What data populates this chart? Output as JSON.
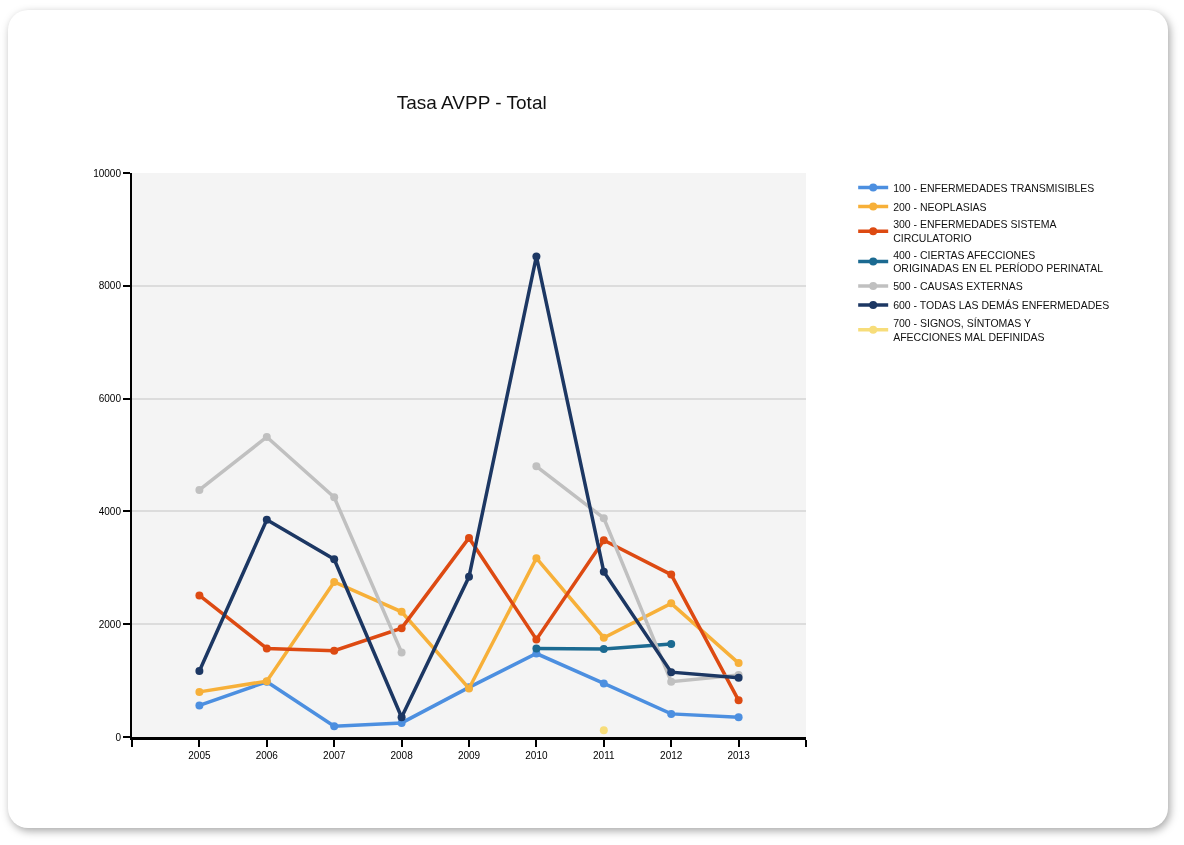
{
  "chart_data": {
    "type": "line",
    "title": "Tasa AVPP - Total",
    "x": [
      2005,
      2006,
      2007,
      2008,
      2009,
      2010,
      2011,
      2012,
      2013
    ],
    "xlim": [
      2004,
      2014
    ],
    "xticks": [
      {
        "value": 2004,
        "label": null
      },
      2005,
      2006,
      2007,
      2008,
      2009,
      2010,
      2011,
      2012,
      2013,
      {
        "value": 2014,
        "label": null
      }
    ],
    "ylim": [
      0,
      10000
    ],
    "yticks": [
      0,
      2000,
      4000,
      6000,
      8000,
      10000
    ],
    "grid": "y",
    "legend": "right",
    "marker": "circle",
    "line_style": "solid",
    "series": [
      {
        "name": "100 - ENFERMEDADES TRANSMISIBLES",
        "color": "#4c8fe0",
        "values": [
          560,
          980,
          190,
          250,
          880,
          1480,
          950,
          410,
          350
        ]
      },
      {
        "name": "200 - NEOPLASIAS",
        "color": "#f7b039",
        "values": [
          800,
          990,
          2750,
          2220,
          860,
          3170,
          1760,
          2370,
          1310
        ]
      },
      {
        "name": "300 - ENFERMEDADES SISTEMA CIRCULATORIO",
        "color": "#dd4a12",
        "values": [
          2510,
          1570,
          1530,
          1930,
          3530,
          1730,
          3490,
          2880,
          650
        ]
      },
      {
        "name": "400 - CIERTAS AFECCIONES ORIGINADAS EN EL PERÍODO PERINATAL",
        "color": "#1b6a91",
        "values": [
          null,
          null,
          null,
          null,
          null,
          1570,
          1560,
          1650,
          null
        ]
      },
      {
        "name": "500 - CAUSAS EXTERNAS",
        "color": "#c0c0c0",
        "values": [
          4380,
          5320,
          4250,
          1500,
          null,
          4800,
          3880,
          980,
          1100
        ]
      },
      {
        "name": "600 - TODAS LAS DEMÁS ENFERMEDADES",
        "color": "#1c3763",
        "values": [
          1170,
          3850,
          3150,
          350,
          2840,
          8520,
          2930,
          1150,
          1050
        ]
      },
      {
        "name": "700 - SIGNOS, SÍNTOMAS Y AFECCIONES MAL DEFINIDAS",
        "color": "#f7dd7a",
        "values": [
          null,
          null,
          null,
          null,
          null,
          null,
          120,
          null,
          null
        ]
      }
    ]
  }
}
